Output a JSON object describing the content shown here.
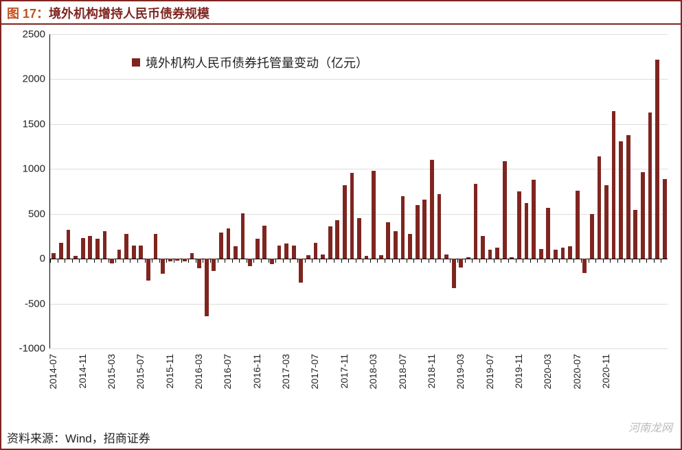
{
  "title": {
    "prefix": "图 17：",
    "text": "境外机构增持人民币债券规模"
  },
  "legend": {
    "label": "境外机构人民币债券托管量变动（亿元）",
    "swatch_color": "#7f2520"
  },
  "source": "资料来源：Wind，招商证券",
  "watermark": "河南龙网",
  "chart": {
    "type": "bar",
    "bar_color": "#7f2520",
    "background_color": "#ffffff",
    "grid_color": "#dddddd",
    "axis_color": "#000000",
    "ymin": -1000,
    "ymax": 2500,
    "ytick_step": 500,
    "yticks": [
      -1000,
      -500,
      0,
      500,
      1000,
      1500,
      2000,
      2500
    ],
    "bar_width_ratio": 0.55,
    "xlabels_shown": [
      "2014-07",
      "2014-11",
      "2015-03",
      "2015-07",
      "2015-11",
      "2016-03",
      "2016-07",
      "2016-11",
      "2017-03",
      "2017-07",
      "2017-11",
      "2018-03",
      "2018-07",
      "2018-11",
      "2019-03",
      "2019-07",
      "2019-11",
      "2020-03",
      "2020-07",
      "2020-11"
    ],
    "categories": [
      "2014-07",
      "2014-08",
      "2014-09",
      "2014-10",
      "2014-11",
      "2014-12",
      "2015-01",
      "2015-02",
      "2015-03",
      "2015-04",
      "2015-05",
      "2015-06",
      "2015-07",
      "2015-08",
      "2015-09",
      "2015-10",
      "2015-11",
      "2015-12",
      "2016-01",
      "2016-02",
      "2016-03",
      "2016-04",
      "2016-05",
      "2016-06",
      "2016-07",
      "2016-08",
      "2016-09",
      "2016-10",
      "2016-11",
      "2016-12",
      "2017-01",
      "2017-02",
      "2017-03",
      "2017-04",
      "2017-05",
      "2017-06",
      "2017-07",
      "2017-08",
      "2017-09",
      "2017-10",
      "2017-11",
      "2017-12",
      "2018-01",
      "2018-02",
      "2018-03",
      "2018-04",
      "2018-05",
      "2018-06",
      "2018-07",
      "2018-08",
      "2018-09",
      "2018-10",
      "2018-11",
      "2018-12",
      "2019-01",
      "2019-02",
      "2019-03",
      "2019-04",
      "2019-05",
      "2019-06",
      "2019-07",
      "2019-08",
      "2019-09",
      "2019-10",
      "2019-11",
      "2019-12",
      "2020-01",
      "2020-02",
      "2020-03",
      "2020-04",
      "2020-05",
      "2020-06",
      "2020-07",
      "2020-08",
      "2020-09",
      "2020-10",
      "2020-11",
      "2020-12",
      "2021-01"
    ],
    "values": [
      60,
      180,
      320,
      30,
      230,
      250,
      225,
      305,
      -55,
      100,
      275,
      150,
      145,
      -245,
      280,
      -170,
      -30,
      -20,
      -30,
      60,
      -105,
      -640,
      -140,
      290,
      340,
      140,
      505,
      -85,
      220,
      365,
      -60,
      150,
      170,
      145,
      -265,
      40,
      180,
      50,
      360,
      430,
      820,
      960,
      450,
      30,
      980,
      40,
      405,
      310,
      695,
      275,
      600,
      655,
      1100,
      720,
      45,
      -325,
      -100,
      20,
      835,
      250,
      100,
      125,
      1090,
      20,
      750,
      620,
      880,
      110,
      570,
      97,
      120,
      142,
      755,
      -160,
      498,
      1141,
      820,
      1645,
      1305
    ],
    "extra_values_after": [
      1375,
      545,
      965,
      1630,
      2220,
      890
    ],
    "title_fontsize": 18,
    "label_fontsize": 15,
    "xlabel_fontsize": 14,
    "legend_fontsize": 18
  }
}
